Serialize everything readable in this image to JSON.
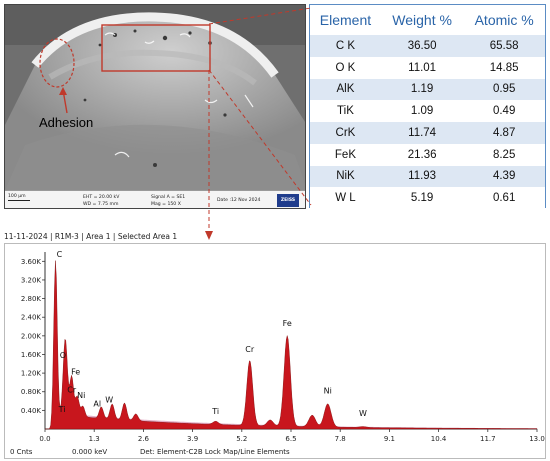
{
  "micrograph": {
    "annotation_label": "Adhesion",
    "databar": {
      "scale_bar": "100 μm",
      "eht": "EHT = 20.00 kV",
      "wd": "WD = 7.75 mm",
      "signal": "Signal A = SE1",
      "mag": "Mag =   150 X",
      "date": "Date :12 Nov 2024",
      "logo": "ZEISS"
    }
  },
  "composition_table": {
    "headers": [
      "Element",
      "Weight %",
      "Atomic %"
    ],
    "rows": [
      {
        "element": "C K",
        "weight": "36.50",
        "atomic": "65.58"
      },
      {
        "element": "O K",
        "weight": "11.01",
        "atomic": "14.85"
      },
      {
        "element": "AlK",
        "weight": "1.19",
        "atomic": "0.95"
      },
      {
        "element": "TiK",
        "weight": "1.09",
        "atomic": "0.49"
      },
      {
        "element": "CrK",
        "weight": "11.74",
        "atomic": "4.87"
      },
      {
        "element": "FeK",
        "weight": "21.36",
        "atomic": "8.25"
      },
      {
        "element": "NiK",
        "weight": "11.93",
        "atomic": "4.39"
      },
      {
        "element": "W L",
        "weight": "5.19",
        "atomic": "0.61"
      }
    ]
  },
  "spectrum_header": "11-11-2024 | R1M-3 | Area 1 | Selected Area 1",
  "spectrum_footer": {
    "counts": "0 Cnts",
    "kev": "0.000 keV",
    "det": "Det: Element-C2B Lock Map/Line Elements"
  },
  "colors": {
    "spectrum_fill": "#c8161d",
    "spectrum_bg_fill": "#d98fb0",
    "table_border": "#5b8cc4",
    "table_header_text": "#2a64a8",
    "table_alt_row": "#dde7f3",
    "connector": "#c0392b"
  },
  "chart_data": {
    "type": "area",
    "xlabel": "",
    "ylabel": "",
    "xlim": [
      0.0,
      13.0
    ],
    "ylim": [
      0,
      3800
    ],
    "x_ticks": [
      "0.0",
      "1.3",
      "2.6",
      "3.9",
      "5.2",
      "6.5",
      "7.8",
      "9.1",
      "10.4",
      "11.7",
      "13.0"
    ],
    "y_ticks": [
      "0.40K",
      "0.80K",
      "1.20K",
      "1.60K",
      "2.00K",
      "2.40K",
      "2.80K",
      "3.20K",
      "3.60K"
    ],
    "peaks": [
      {
        "label": "C",
        "x": 0.277,
        "counts": 3650
      },
      {
        "label": "O",
        "x": 0.525,
        "counts": 1400
      },
      {
        "label": "Fe",
        "x": 0.705,
        "counts": 1000
      },
      {
        "label": "Cr",
        "x": 0.573,
        "counts": 700
      },
      {
        "label": "Ni",
        "x": 0.851,
        "counts": 580
      },
      {
        "label": "Ti",
        "x": 0.452,
        "counts": 280
      },
      {
        "label": "Al",
        "x": 1.487,
        "counts": 400
      },
      {
        "label": "W",
        "x": 1.775,
        "counts": 480
      },
      {
        "label": "Ti",
        "x": 4.51,
        "counts": 220
      },
      {
        "label": "Cr",
        "x": 5.41,
        "counts": 1550
      },
      {
        "label": "Fe",
        "x": 6.4,
        "counts": 2100
      },
      {
        "label": "Ni",
        "x": 7.47,
        "counts": 650
      },
      {
        "label": "W",
        "x": 8.4,
        "counts": 170
      }
    ],
    "minor_peaks": [
      {
        "x": 1.0,
        "counts": 380
      },
      {
        "x": 2.1,
        "counts": 520
      },
      {
        "x": 2.4,
        "counts": 300
      },
      {
        "x": 4.93,
        "counts": 80
      },
      {
        "x": 5.95,
        "counts": 280
      },
      {
        "x": 7.06,
        "counts": 400
      },
      {
        "x": 8.26,
        "counts": 140
      },
      {
        "x": 9.67,
        "counts": 120
      }
    ]
  }
}
